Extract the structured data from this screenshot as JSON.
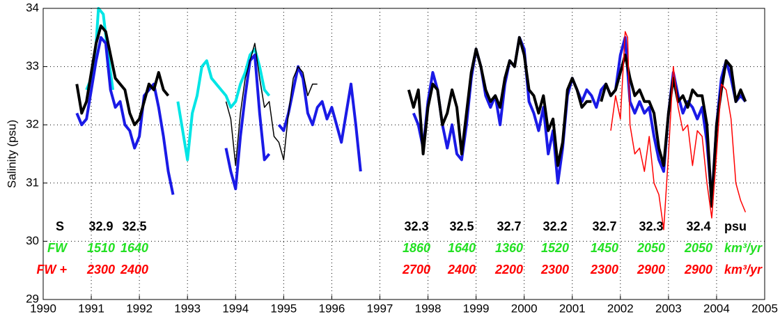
{
  "chart_data": {
    "type": "line",
    "ylabel": "Salinity (psu)",
    "xlim": [
      1990,
      2005
    ],
    "xticks": [
      1990,
      1991,
      1992,
      1993,
      1994,
      1995,
      1996,
      1997,
      1998,
      1999,
      2000,
      2001,
      2002,
      2003,
      2004,
      2005
    ],
    "ylim": [
      29,
      34
    ],
    "yticks": [
      29,
      30,
      31,
      32,
      33,
      34
    ],
    "grid": true,
    "series": [
      {
        "color": "#00e5e5",
        "x": [
          1990.9,
          1991.0,
          1991.1,
          1991.15,
          1991.25,
          1991.35,
          1991.45,
          null,
          1992.8,
          1992.9,
          1993.0,
          1993.1,
          1993.2,
          1993.3,
          1993.4,
          1993.5,
          1993.6,
          1993.7,
          1993.8,
          1993.9,
          1994.0,
          1994.1,
          1994.2,
          1994.3,
          1994.4,
          1994.5,
          1994.6,
          1994.7
        ],
        "values": [
          32.6,
          32.8,
          33.4,
          34.0,
          33.9,
          33.2,
          32.6,
          null,
          32.4,
          31.9,
          31.4,
          32.2,
          32.5,
          33.0,
          33.1,
          32.8,
          32.7,
          32.6,
          32.5,
          32.3,
          32.4,
          32.7,
          32.9,
          33.2,
          33.3,
          33.0,
          32.6,
          32.5
        ]
      },
      {
        "color": "#1a1ae6",
        "x": [
          1990.7,
          1990.8,
          1990.9,
          1991.0,
          1991.1,
          1991.2,
          1991.3,
          1991.4,
          1991.5,
          1991.6,
          1991.7,
          1991.8,
          1991.9,
          1992.0,
          1992.1,
          1992.2,
          1992.3,
          1992.4,
          1992.5,
          1992.6,
          1992.7,
          null,
          1993.8,
          1993.9,
          1994.0,
          1994.1,
          1994.2,
          1994.3,
          1994.4,
          1994.5,
          1994.6,
          1994.7,
          null,
          1994.9,
          1995.0,
          1995.1,
          1995.2,
          1995.3,
          1995.4,
          1995.5,
          1995.6,
          1995.7,
          1995.8,
          1995.9,
          1996.0,
          1996.1,
          1996.2,
          1996.3,
          1996.4,
          1996.5,
          1996.6,
          null,
          1997.7,
          1997.8,
          1997.9,
          1998.0,
          1998.1,
          1998.2,
          1998.3,
          1998.4,
          1998.5,
          1998.6,
          1998.7,
          1998.8,
          1998.9,
          1999.0,
          1999.1,
          1999.2,
          1999.3,
          1999.4,
          1999.5,
          1999.6,
          1999.7,
          1999.8,
          1999.9,
          2000.0,
          2000.1,
          2000.2,
          2000.3,
          2000.4,
          2000.5,
          2000.6,
          2000.7,
          2000.8,
          2000.9,
          2001.0,
          2001.1,
          2001.2,
          2001.3,
          2001.4,
          2001.5,
          2001.6,
          2001.7,
          2001.8,
          2001.9,
          2002.0,
          2002.1,
          2002.2,
          2002.3,
          2002.4,
          2002.5,
          2002.6,
          2002.7,
          2002.8,
          2002.9,
          2003.0,
          2003.1,
          2003.2,
          2003.3,
          2003.4,
          2003.5,
          2003.6,
          2003.7,
          2003.8,
          2003.9,
          2004.0,
          2004.1,
          2004.2,
          2004.3,
          2004.4,
          2004.5,
          2004.6
        ],
        "values": [
          32.2,
          32.0,
          32.1,
          32.6,
          33.1,
          33.5,
          33.4,
          32.6,
          32.3,
          32.4,
          32.0,
          31.9,
          31.6,
          31.8,
          32.5,
          32.6,
          32.7,
          32.3,
          31.8,
          31.2,
          30.8,
          null,
          31.6,
          31.2,
          30.9,
          31.8,
          32.5,
          33.1,
          33.2,
          32.2,
          31.4,
          31.5,
          null,
          32.0,
          31.9,
          32.2,
          32.6,
          33.0,
          32.8,
          32.2,
          32.0,
          32.3,
          32.4,
          32.1,
          32.3,
          32.0,
          31.7,
          32.2,
          32.7,
          32.0,
          31.2,
          null,
          32.2,
          32.0,
          31.6,
          32.4,
          32.9,
          32.6,
          32.0,
          31.6,
          32.0,
          31.5,
          31.4,
          32.0,
          32.8,
          33.3,
          33.0,
          32.5,
          32.3,
          32.5,
          32.0,
          32.7,
          33.1,
          33.0,
          33.5,
          33.3,
          32.4,
          32.2,
          31.9,
          32.3,
          31.5,
          31.9,
          31.0,
          31.6,
          32.5,
          32.8,
          32.6,
          32.4,
          32.6,
          32.5,
          32.3,
          32.6,
          32.7,
          32.5,
          32.6,
          33.2,
          33.5,
          32.4,
          32.2,
          32.4,
          32.2,
          32.3,
          31.8,
          31.4,
          31.2,
          32.2,
          32.9,
          32.5,
          32.2,
          32.4,
          32.3,
          32.1,
          32.3,
          31.7,
          30.7,
          32.0,
          32.8,
          33.1,
          32.8,
          32.4,
          32.5,
          32.4
        ]
      },
      {
        "color": "#000000",
        "x": [
          1990.7,
          1990.8,
          1990.9,
          1991.0,
          1991.1,
          1991.2,
          1991.3,
          1991.4,
          1991.5,
          1991.6,
          1991.7,
          1991.8,
          1991.9,
          1992.0,
          1992.1,
          1992.2,
          1992.3,
          1992.4,
          1992.5,
          1992.6,
          null,
          1997.6,
          1997.7,
          1997.8,
          1997.9,
          1998.0,
          1998.1,
          1998.2,
          1998.3,
          1998.4,
          1998.5,
          1998.6,
          1998.7,
          1998.8,
          1998.9,
          1999.0,
          1999.1,
          1999.2,
          1999.3,
          1999.4,
          1999.5,
          1999.6,
          1999.7,
          1999.8,
          1999.9,
          2000.0,
          2000.1,
          2000.2,
          2000.3,
          2000.4,
          2000.5,
          2000.6,
          2000.7,
          2000.8,
          2000.9,
          2001.0,
          2001.1,
          2001.2,
          2001.3,
          2001.4,
          null,
          2001.6,
          2001.7,
          2001.8,
          2001.9,
          2002.0,
          2002.1,
          2002.2,
          2002.3,
          2002.4,
          2002.5,
          2002.6,
          2002.7,
          2002.8,
          2002.9,
          2003.0,
          2003.1,
          2003.2,
          2003.3,
          2003.4,
          2003.5,
          2003.6,
          2003.7,
          2003.8,
          2003.9,
          2004.0,
          2004.1,
          2004.2,
          2004.3,
          2004.4,
          2004.5,
          2004.6
        ],
        "values": [
          32.7,
          32.2,
          32.4,
          32.9,
          33.4,
          33.7,
          33.6,
          33.2,
          32.8,
          32.7,
          32.6,
          32.2,
          32.0,
          32.1,
          32.4,
          32.7,
          32.6,
          32.9,
          32.6,
          32.5,
          null,
          32.6,
          32.3,
          32.6,
          31.5,
          32.3,
          32.7,
          32.6,
          32.0,
          32.2,
          32.6,
          32.3,
          31.5,
          32.2,
          32.9,
          33.3,
          33.0,
          32.6,
          32.4,
          32.5,
          32.3,
          32.8,
          33.1,
          33.0,
          33.5,
          33.2,
          32.6,
          32.5,
          32.2,
          32.5,
          31.9,
          32.1,
          31.3,
          31.7,
          32.6,
          32.8,
          32.6,
          32.3,
          32.4,
          32.4,
          null,
          32.4,
          32.7,
          32.5,
          32.6,
          32.9,
          33.2,
          32.8,
          32.5,
          32.6,
          32.4,
          32.4,
          32.2,
          31.6,
          31.3,
          32.2,
          32.8,
          32.4,
          32.5,
          32.3,
          32.6,
          32.5,
          32.5,
          32.0,
          30.6,
          32.0,
          32.6,
          33.1,
          33.0,
          32.4,
          32.6,
          32.4
        ]
      },
      {
        "color": "#000000",
        "x": [
          1993.8,
          1993.9,
          1994.0,
          1994.1,
          1994.2,
          1994.3,
          1994.4,
          1994.5,
          1994.6,
          1994.7,
          1994.8,
          1994.9,
          1995.0,
          1995.1,
          1995.2,
          1995.3,
          1995.4,
          1995.5,
          1995.6,
          1995.7
        ],
        "values": [
          32.4,
          32.1,
          31.3,
          32.2,
          32.8,
          33.1,
          33.4,
          32.8,
          32.3,
          32.4,
          31.8,
          31.7,
          31.4,
          32.2,
          32.8,
          33.0,
          32.9,
          32.5,
          32.7,
          32.7
        ]
      },
      {
        "color": "#ff0000",
        "x": [
          2001.8,
          2001.9,
          2002.0,
          2002.1,
          2002.15,
          2002.2,
          2002.3,
          2002.4,
          2002.5,
          2002.6,
          2002.7,
          2002.8,
          2002.9,
          2003.0,
          2003.1,
          2003.2,
          2003.3,
          2003.4,
          2003.5,
          2003.6,
          2003.7,
          2003.8,
          2003.9,
          2004.0,
          2004.1,
          2004.2,
          2004.3,
          2004.4,
          2004.5,
          2004.6
        ],
        "values": [
          31.9,
          32.5,
          32.1,
          33.6,
          33.5,
          32.0,
          31.5,
          31.6,
          31.2,
          31.8,
          31.0,
          30.8,
          30.2,
          31.5,
          33.0,
          32.3,
          31.9,
          32.0,
          31.3,
          31.9,
          31.8,
          31.0,
          30.4,
          31.5,
          32.7,
          32.6,
          32.1,
          31.0,
          30.7,
          30.5
        ]
      }
    ],
    "annotations": [
      {
        "label": "S",
        "values": [
          32.9,
          32.5,
          32.3,
          32.5,
          32.7,
          32.2,
          32.7,
          32.3,
          32.4
        ],
        "unit": "psu",
        "color": "#000000"
      },
      {
        "label": "FW",
        "values": [
          1510,
          1640,
          1860,
          1640,
          1360,
          1520,
          1450,
          2050,
          2050
        ],
        "unit": "km³/yr",
        "color": "#22e022"
      },
      {
        "label": "FW +",
        "values": [
          2300,
          2400,
          2700,
          2400,
          2200,
          2300,
          2300,
          2900,
          2900
        ],
        "unit": "km³/yr",
        "color": "#ff0000"
      }
    ]
  }
}
